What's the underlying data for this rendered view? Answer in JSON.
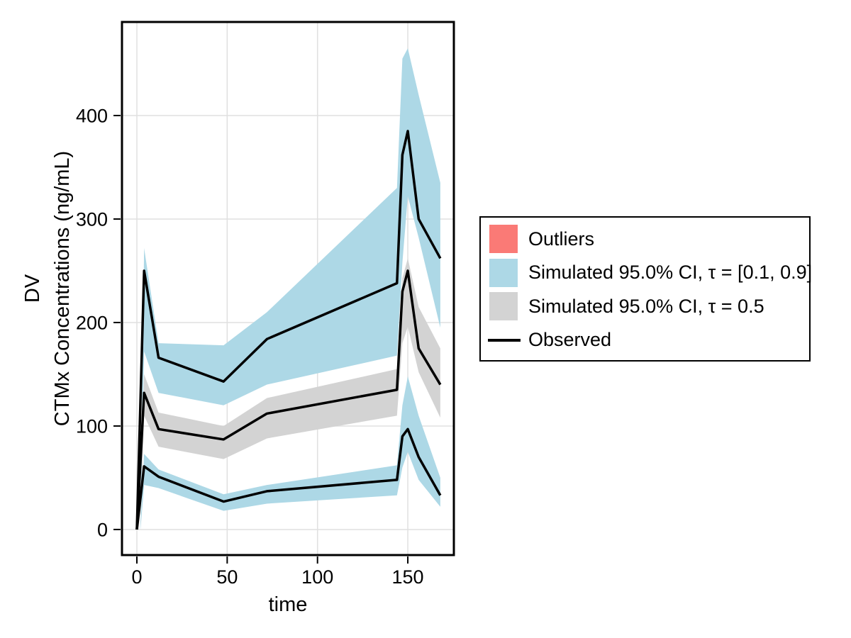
{
  "chart_data": {
    "type": "line",
    "title": "",
    "xlabel": "time",
    "ylabel": [
      "DV",
      "CTMx Concentrations (ng/mL)"
    ],
    "xlim": [
      -8.25,
      175.5
    ],
    "ylim": [
      -24.7,
      490.4
    ],
    "xticks": [
      0,
      50,
      100,
      150
    ],
    "yticks": [
      0,
      100,
      200,
      300,
      400
    ],
    "grid": true,
    "grid_color": "#E0E0E0",
    "frame_color": "#000000",
    "legend_position": "right",
    "bands": [
      {
        "name": "simulated-ci-upper-quantile-band",
        "color": "#ADD8E6",
        "x": [
          2,
          4,
          12,
          48,
          72,
          144,
          147,
          150,
          156,
          168
        ],
        "hi": [
          10,
          272,
          180,
          178,
          210,
          330,
          455,
          465,
          420,
          335
        ],
        "lo": [
          0,
          172,
          132,
          120,
          140,
          168,
          258,
          322,
          282,
          195
        ]
      },
      {
        "name": "simulated-ci-median-band",
        "color": "#D3D3D3",
        "x": [
          2,
          4,
          12,
          48,
          72,
          144,
          147,
          150,
          156,
          168
        ],
        "hi": [
          6,
          150,
          113,
          100,
          127,
          155,
          243,
          262,
          215,
          175
        ],
        "lo": [
          0,
          110,
          80,
          68,
          88,
          110,
          180,
          196,
          152,
          108
        ]
      },
      {
        "name": "simulated-ci-lower-quantile-band",
        "color": "#ADD8E6",
        "x": [
          2,
          4,
          12,
          48,
          72,
          144,
          147,
          150,
          156,
          168
        ],
        "hi": [
          4,
          73,
          58,
          34,
          43,
          62,
          120,
          148,
          110,
          50
        ],
        "lo": [
          0,
          43,
          40,
          18,
          25,
          33,
          60,
          75,
          48,
          22
        ]
      }
    ],
    "series": [
      {
        "name": "observed-upper-quantile",
        "color": "#000000",
        "x": [
          0,
          4,
          12,
          48,
          72,
          144,
          147,
          150,
          156,
          168
        ],
        "y": [
          0,
          250,
          166,
          143,
          184,
          238,
          362,
          385,
          300,
          262
        ]
      },
      {
        "name": "observed-median",
        "color": "#000000",
        "x": [
          0,
          4,
          12,
          48,
          72,
          144,
          147,
          150,
          156,
          168
        ],
        "y": [
          0,
          132,
          97,
          87,
          112,
          135,
          230,
          250,
          175,
          140
        ]
      },
      {
        "name": "observed-lower-quantile",
        "color": "#000000",
        "x": [
          0,
          4,
          12,
          48,
          72,
          144,
          147,
          150,
          156,
          168
        ],
        "y": [
          0,
          61,
          51,
          27,
          37,
          48,
          90,
          97,
          70,
          33
        ]
      }
    ],
    "legend": [
      {
        "label": "Outliers",
        "color": "#FA7A76",
        "type": "patch"
      },
      {
        "label": "Simulated 95.0% CI, τ = [0.1, 0.9]",
        "color": "#ADD8E6",
        "type": "patch"
      },
      {
        "label": "Simulated 95.0% CI, τ = 0.5",
        "color": "#D3D3D3",
        "type": "patch"
      },
      {
        "label": "Observed",
        "color": "#000000",
        "type": "line"
      }
    ]
  }
}
